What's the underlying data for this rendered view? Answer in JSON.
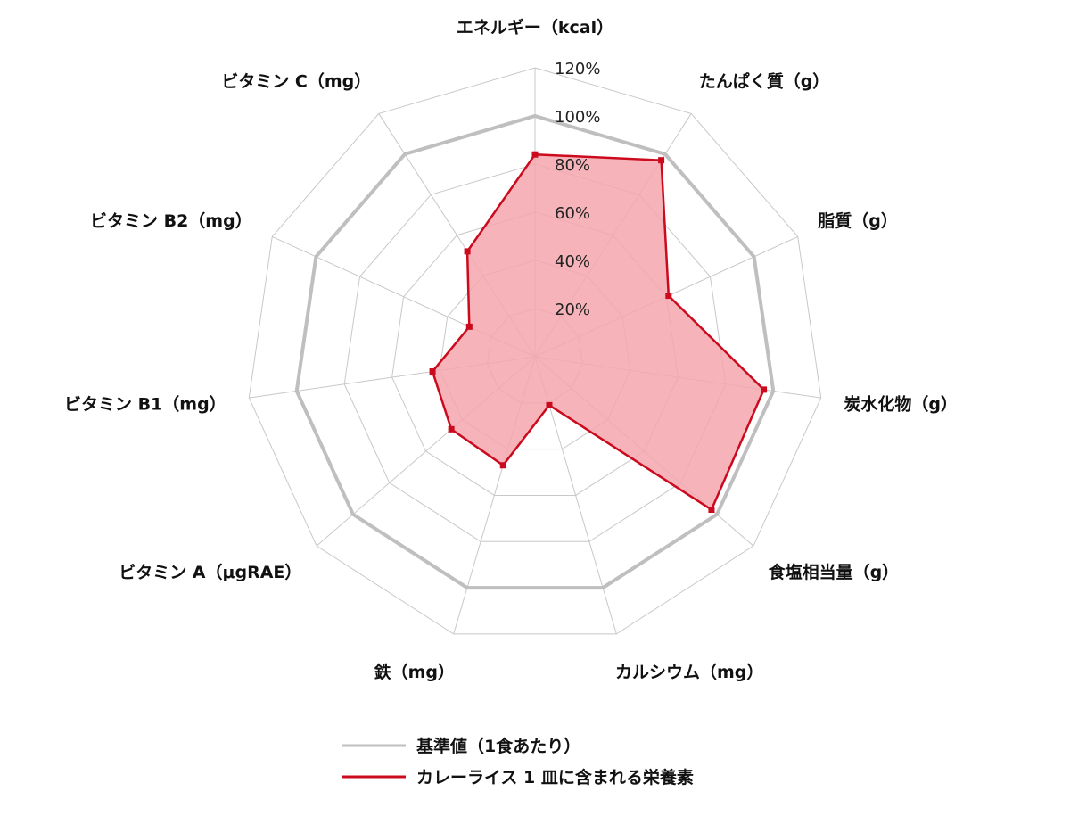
{
  "chart_data": {
    "type": "radar",
    "categories": [
      "エネルギー（kcal）",
      "たんぱく質（g）",
      "脂質（g）",
      "炭水化物（g）",
      "食塩相当量（g）",
      "カルシウム（mg）",
      "鉄（mg）",
      "ビタミン A（μgRAE）",
      "ビタミン B1（mg）",
      "ビタミン B2（mg）",
      "ビタミン C（mg）"
    ],
    "ticks": [
      "20%",
      "40%",
      "60%",
      "80%",
      "100%",
      "120%"
    ],
    "tick_values": [
      20,
      40,
      60,
      80,
      100,
      120
    ],
    "rlim": [
      0,
      120
    ],
    "series": [
      {
        "name": "基準値（1食あたり）",
        "color": "#bfbfbf",
        "values": [
          100,
          100,
          100,
          100,
          100,
          100,
          100,
          100,
          100,
          100,
          100
        ]
      },
      {
        "name": "カレーライス 1 皿に含まれる栄養素",
        "color": "#cc0a1e",
        "fill": "#f4a6ad",
        "values": [
          84,
          97,
          61,
          96,
          97,
          21,
          47,
          46,
          43,
          30,
          52
        ]
      }
    ],
    "grid": true,
    "legend": "bottom"
  }
}
